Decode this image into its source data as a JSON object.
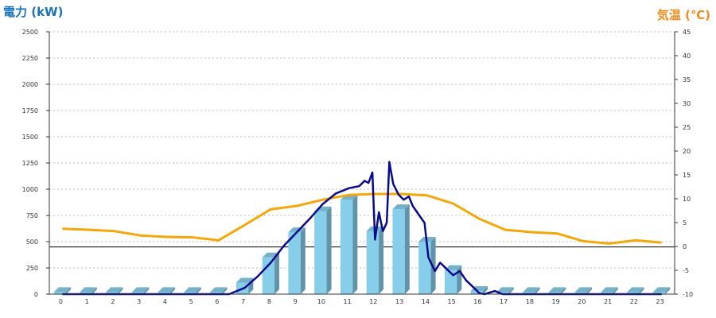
{
  "chart_data": {
    "type": "bar",
    "title_left": "電力 (kW)",
    "title_right": "気温 (℃)",
    "colors": {
      "title_left": "#1a73b8",
      "title_right": "#f08c1e",
      "bars": "#87ceeb",
      "power_line": "#0a0a8c",
      "temp_line": "#f5a70a",
      "grid": "#bbbbbb"
    },
    "categories": [
      "0",
      "1",
      "2",
      "3",
      "4",
      "5",
      "6",
      "7",
      "8",
      "9",
      "10",
      "11",
      "12",
      "13",
      "14",
      "15",
      "16",
      "17",
      "18",
      "19",
      "20",
      "21",
      "22",
      "23"
    ],
    "y_left": {
      "min": 0,
      "max": 2500,
      "ticks": [
        "0",
        "250",
        "500",
        "750",
        "1000",
        "1250",
        "1500",
        "1750",
        "2000",
        "2250",
        "2500"
      ]
    },
    "y_right": {
      "min": -10,
      "max": 45,
      "ticks": [
        "-10",
        "-5",
        "0",
        "5",
        "10",
        "15",
        "20",
        "25",
        "30",
        "35",
        "40",
        "45"
      ]
    },
    "grid": true,
    "series": [
      {
        "kind": "bar",
        "axis": "left",
        "values": [
          20,
          20,
          20,
          20,
          20,
          20,
          20,
          110,
          350,
          590,
          790,
          900,
          600,
          810,
          500,
          230,
          30,
          20,
          20,
          20,
          20,
          20,
          20,
          20
        ]
      },
      {
        "kind": "line",
        "axis": "left",
        "points": [
          [
            0,
            0
          ],
          [
            1,
            0
          ],
          [
            2,
            0
          ],
          [
            3,
            0
          ],
          [
            4,
            0
          ],
          [
            5,
            0
          ],
          [
            6,
            0
          ],
          [
            6.4,
            0
          ],
          [
            7,
            60
          ],
          [
            7.5,
            170
          ],
          [
            8,
            300
          ],
          [
            8.5,
            460
          ],
          [
            9,
            590
          ],
          [
            9.5,
            720
          ],
          [
            10,
            860
          ],
          [
            10.5,
            960
          ],
          [
            11,
            1010
          ],
          [
            11.4,
            1030
          ],
          [
            11.6,
            1080
          ],
          [
            11.75,
            1060
          ],
          [
            11.9,
            1160
          ],
          [
            12,
            520
          ],
          [
            12.15,
            780
          ],
          [
            12.3,
            600
          ],
          [
            12.45,
            680
          ],
          [
            12.55,
            1260
          ],
          [
            12.7,
            1050
          ],
          [
            12.9,
            950
          ],
          [
            13.1,
            900
          ],
          [
            13.3,
            930
          ],
          [
            13.45,
            840
          ],
          [
            13.7,
            750
          ],
          [
            13.9,
            680
          ],
          [
            14.05,
            350
          ],
          [
            14.3,
            220
          ],
          [
            14.5,
            300
          ],
          [
            14.75,
            240
          ],
          [
            15,
            180
          ],
          [
            15.25,
            220
          ],
          [
            15.5,
            130
          ],
          [
            15.8,
            60
          ],
          [
            16,
            10
          ],
          [
            16.2,
            0
          ],
          [
            16.6,
            30
          ],
          [
            16.9,
            0
          ],
          [
            17,
            0
          ],
          [
            18,
            0
          ],
          [
            19,
            0
          ],
          [
            20,
            0
          ],
          [
            21,
            0
          ],
          [
            22,
            0
          ],
          [
            23,
            0
          ]
        ]
      },
      {
        "kind": "line",
        "axis": "right",
        "values": [
          3.7,
          3.5,
          3.2,
          2.3,
          2.0,
          1.9,
          1.3,
          4.5,
          7.8,
          8.5,
          9.8,
          10.8,
          11.0,
          11.0,
          10.7,
          9.0,
          5.8,
          3.5,
          3.0,
          2.7,
          1.1,
          0.6,
          1.3,
          0.8
        ]
      }
    ],
    "reference_line": {
      "axis": "left",
      "value": 450
    }
  }
}
